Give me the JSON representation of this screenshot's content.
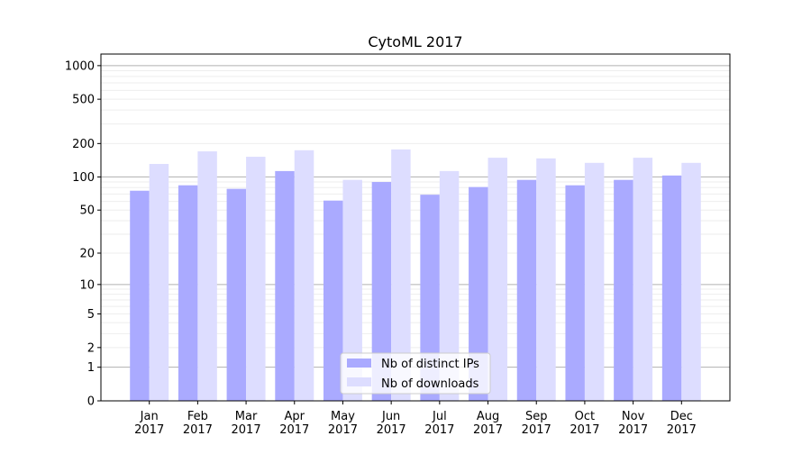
{
  "chart_data": {
    "type": "bar",
    "title": "CytoML 2017",
    "xlabel": "",
    "ylabel": "",
    "yscale": "log10(1+y)",
    "ylim": [
      0,
      1270
    ],
    "yticks": [
      0,
      1,
      2,
      5,
      10,
      20,
      50,
      100,
      200,
      500,
      1000
    ],
    "categories": [
      "Jan\n2017",
      "Feb\n2017",
      "Mar\n2017",
      "Apr\n2017",
      "May\n2017",
      "Jun\n2017",
      "Jul\n2017",
      "Aug\n2017",
      "Sep\n2017",
      "Oct\n2017",
      "Nov\n2017",
      "Dec\n2017"
    ],
    "series": [
      {
        "name": "Nb of distinct IPs",
        "color": "#aaaaff",
        "values": [
          75,
          84,
          78,
          113,
          61,
          90,
          69,
          81,
          94,
          84,
          94,
          103
        ]
      },
      {
        "name": "Nb of downloads",
        "color": "#ddddff",
        "values": [
          131,
          170,
          152,
          174,
          94,
          177,
          113,
          149,
          147,
          134,
          149,
          134
        ]
      }
    ],
    "grid": true,
    "legend_position": "lower center"
  }
}
